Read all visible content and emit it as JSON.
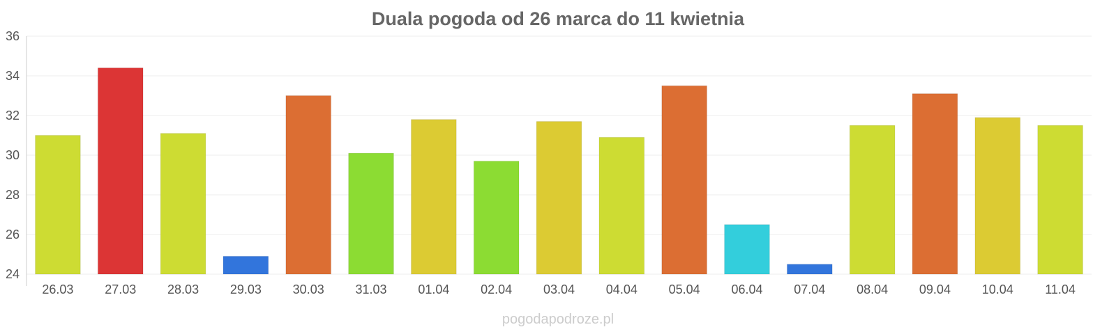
{
  "chart_data": {
    "type": "bar",
    "title": "Duala pogoda od 26 marca do 11 kwietnia",
    "xlabel": "",
    "ylabel": "",
    "ylim": [
      24,
      36
    ],
    "yticks": [
      24,
      26,
      28,
      30,
      32,
      34,
      36
    ],
    "grid": true,
    "categories": [
      "26.03",
      "27.03",
      "28.03",
      "29.03",
      "30.03",
      "31.03",
      "01.04",
      "02.04",
      "03.04",
      "04.04",
      "05.04",
      "06.04",
      "07.04",
      "08.04",
      "09.04",
      "10.04",
      "11.04"
    ],
    "values": [
      31.0,
      34.4,
      31.1,
      24.9,
      33.0,
      30.1,
      31.8,
      29.7,
      31.7,
      30.9,
      33.5,
      26.5,
      24.5,
      31.5,
      33.1,
      31.9,
      31.5
    ],
    "colors": [
      "#cddc33",
      "#dc3535",
      "#cddc33",
      "#3275dc",
      "#dc6e33",
      "#8cdc33",
      "#dccb33",
      "#8cdc33",
      "#dccb33",
      "#cddc33",
      "#dc6e33",
      "#33cedc",
      "#3275dc",
      "#cddc33",
      "#dc6e33",
      "#dccb33",
      "#cddc33"
    ]
  },
  "watermark": "pogodapodroze.pl"
}
